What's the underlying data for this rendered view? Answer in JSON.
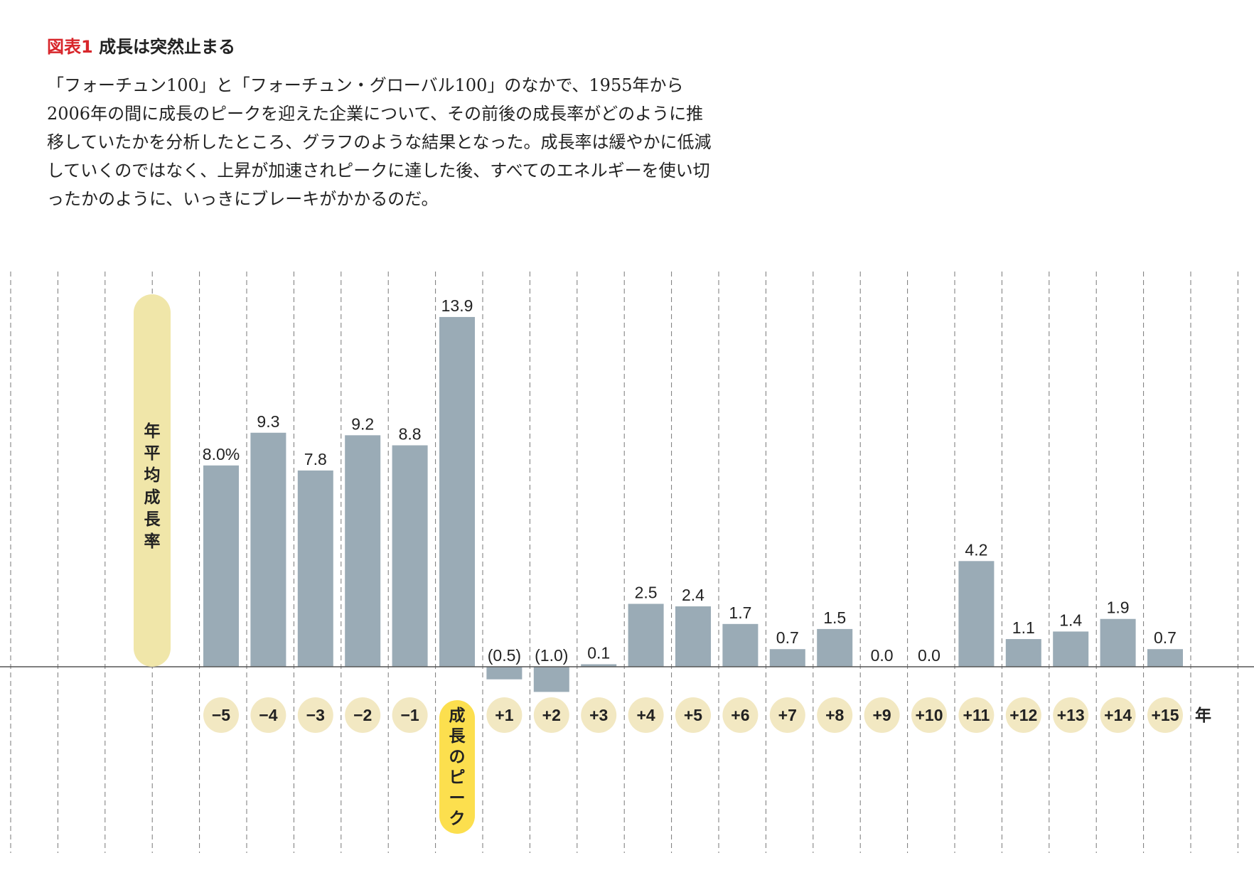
{
  "title": {
    "prefix": "図表1",
    "text": "成長は突然止まる"
  },
  "description": "「フォーチュン100」と「フォーチュン・グローバル100」のなかで、1955年から2006年の間に成長のピークを迎えた企業について、その前後の成長率がどのように推移していたかを分析したところ、グラフのような結果となった。成長率は緩やかに低減していくのではなく、上昇が加速されピークに達した後、すべてのエネルギーを使い切ったかのように、いっきにブレーキがかかるのだ。",
  "chart_data": {
    "type": "bar",
    "ylabel": "年平均成長率",
    "x_unit": "年",
    "peak_label": "成長のピーク",
    "categories": [
      "−5",
      "−4",
      "−3",
      "−2",
      "−1",
      "成長のピーク",
      "+1",
      "+2",
      "+3",
      "+4",
      "+5",
      "+6",
      "+7",
      "+8",
      "+9",
      "+10",
      "+11",
      "+12",
      "+13",
      "+14",
      "+15"
    ],
    "values": [
      8.0,
      9.3,
      7.8,
      9.2,
      8.8,
      13.9,
      -0.5,
      -1.0,
      0.1,
      2.5,
      2.4,
      1.7,
      0.7,
      1.5,
      0.0,
      0.0,
      4.2,
      1.1,
      1.4,
      1.9,
      0.7
    ],
    "value_labels": [
      "8.0%",
      "9.3",
      "7.8",
      "9.2",
      "8.8",
      "13.9",
      "(0.5)",
      "(1.0)",
      "0.1",
      "2.5",
      "2.4",
      "1.7",
      "0.7",
      "1.5",
      "0.0",
      "0.0",
      "4.2",
      "1.1",
      "1.4",
      "1.9",
      "0.7"
    ],
    "grid": "vertical dashed",
    "colors": {
      "bar": "#9aabb6",
      "axis": "#555555",
      "label_pill": "#f2e8c2",
      "ylabel_pill": "#f0e6a9",
      "peak_pill": "#fcdf4e",
      "title_prefix": "#d8262b"
    }
  }
}
